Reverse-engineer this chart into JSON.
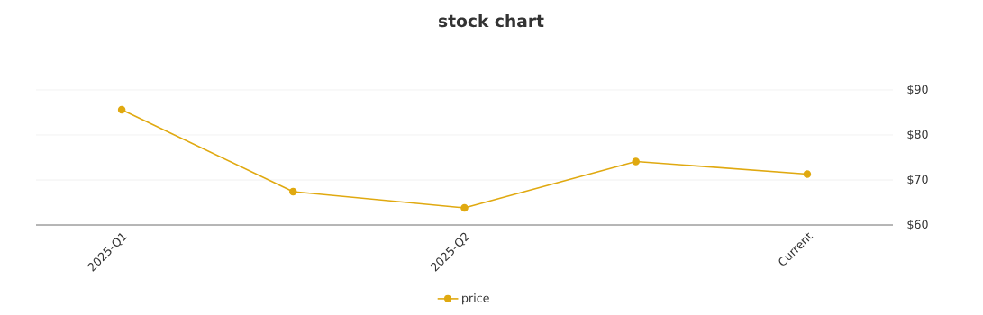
{
  "chart_data": {
    "type": "line",
    "title": "stock chart",
    "categories": [
      "2025-Q1",
      null,
      "2025-Q2",
      null,
      "Current"
    ],
    "series": [
      {
        "name": "price",
        "color": "#e0a910",
        "values": [
          85.6,
          67.4,
          63.8,
          74.1,
          71.3
        ]
      }
    ],
    "ylim": [
      60,
      90
    ],
    "yticks": [
      {
        "value": 60,
        "label": "$60"
      },
      {
        "value": 70,
        "label": "$70"
      },
      {
        "value": 80,
        "label": "$80"
      },
      {
        "value": 90,
        "label": "$90"
      }
    ],
    "grid": "y",
    "legend": "bottom",
    "marker": "circle",
    "line_style": "solid"
  }
}
